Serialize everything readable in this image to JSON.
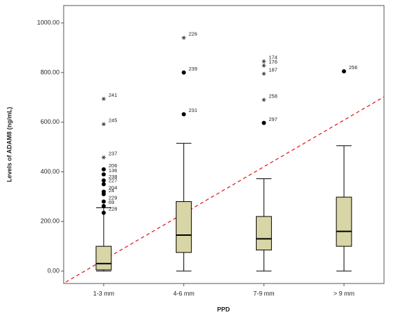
{
  "chart_data": {
    "type": "box",
    "x_label": "PPD",
    "y_label": "Levels of ADAM8 (ng/mL)",
    "categories": [
      "1-3 mm",
      "4-6 mm",
      "7-9 mm",
      "> 9 mm"
    ],
    "color": "#d8d5a6",
    "ylim": [
      -50,
      1070
    ],
    "yticks": [
      {
        "value": 0,
        "label": "0.00"
      },
      {
        "value": 200,
        "label": "200.00"
      },
      {
        "value": 400,
        "label": "400.00"
      },
      {
        "value": 600,
        "label": "600.00"
      },
      {
        "value": 800,
        "label": "800.00"
      },
      {
        "value": 1000,
        "label": "1000.00"
      }
    ],
    "boxes": [
      {
        "whisker_low": 0,
        "q1": 5,
        "median": 30,
        "q3": 100,
        "whisker_high": 255,
        "outliers": [
          {
            "value": 694,
            "label": "241",
            "marker": "star"
          },
          {
            "value": 592,
            "label": "245",
            "marker": "star"
          },
          {
            "value": 458,
            "label": "237",
            "marker": "star"
          },
          {
            "value": 410,
            "label": "206",
            "marker": "circle"
          },
          {
            "value": 390,
            "label": "136",
            "marker": "circle"
          },
          {
            "value": 365,
            "label": "238",
            "marker": "circle"
          },
          {
            "value": 350,
            "label": "227",
            "marker": "circle"
          },
          {
            "value": 320,
            "label": "204",
            "marker": "circle"
          },
          {
            "value": 310,
            "label": "24",
            "marker": "circle"
          },
          {
            "value": 280,
            "label": "229",
            "marker": "circle"
          },
          {
            "value": 262,
            "label": "69",
            "marker": "circle"
          },
          {
            "value": 235,
            "label": "228",
            "marker": "circle"
          }
        ]
      },
      {
        "whisker_low": 0,
        "q1": 75,
        "median": 145,
        "q3": 280,
        "whisker_high": 515,
        "outliers": [
          {
            "value": 940,
            "label": "226",
            "marker": "star"
          },
          {
            "value": 800,
            "label": "239",
            "marker": "circle"
          },
          {
            "value": 632,
            "label": "231",
            "marker": "circle"
          }
        ]
      },
      {
        "whisker_low": 0,
        "q1": 85,
        "median": 130,
        "q3": 220,
        "whisker_high": 372,
        "outliers": [
          {
            "value": 845,
            "label": "174",
            "marker": "star"
          },
          {
            "value": 828,
            "label": "176",
            "marker": "star"
          },
          {
            "value": 795,
            "label": "187",
            "marker": "star"
          },
          {
            "value": 690,
            "label": "258",
            "marker": "star"
          },
          {
            "value": 597,
            "label": "297",
            "marker": "circle"
          }
        ]
      },
      {
        "whisker_low": 0,
        "q1": 100,
        "median": 160,
        "q3": 298,
        "whisker_high": 505,
        "outliers": [
          {
            "value": 805,
            "label": "256",
            "marker": "circle"
          }
        ]
      }
    ]
  }
}
